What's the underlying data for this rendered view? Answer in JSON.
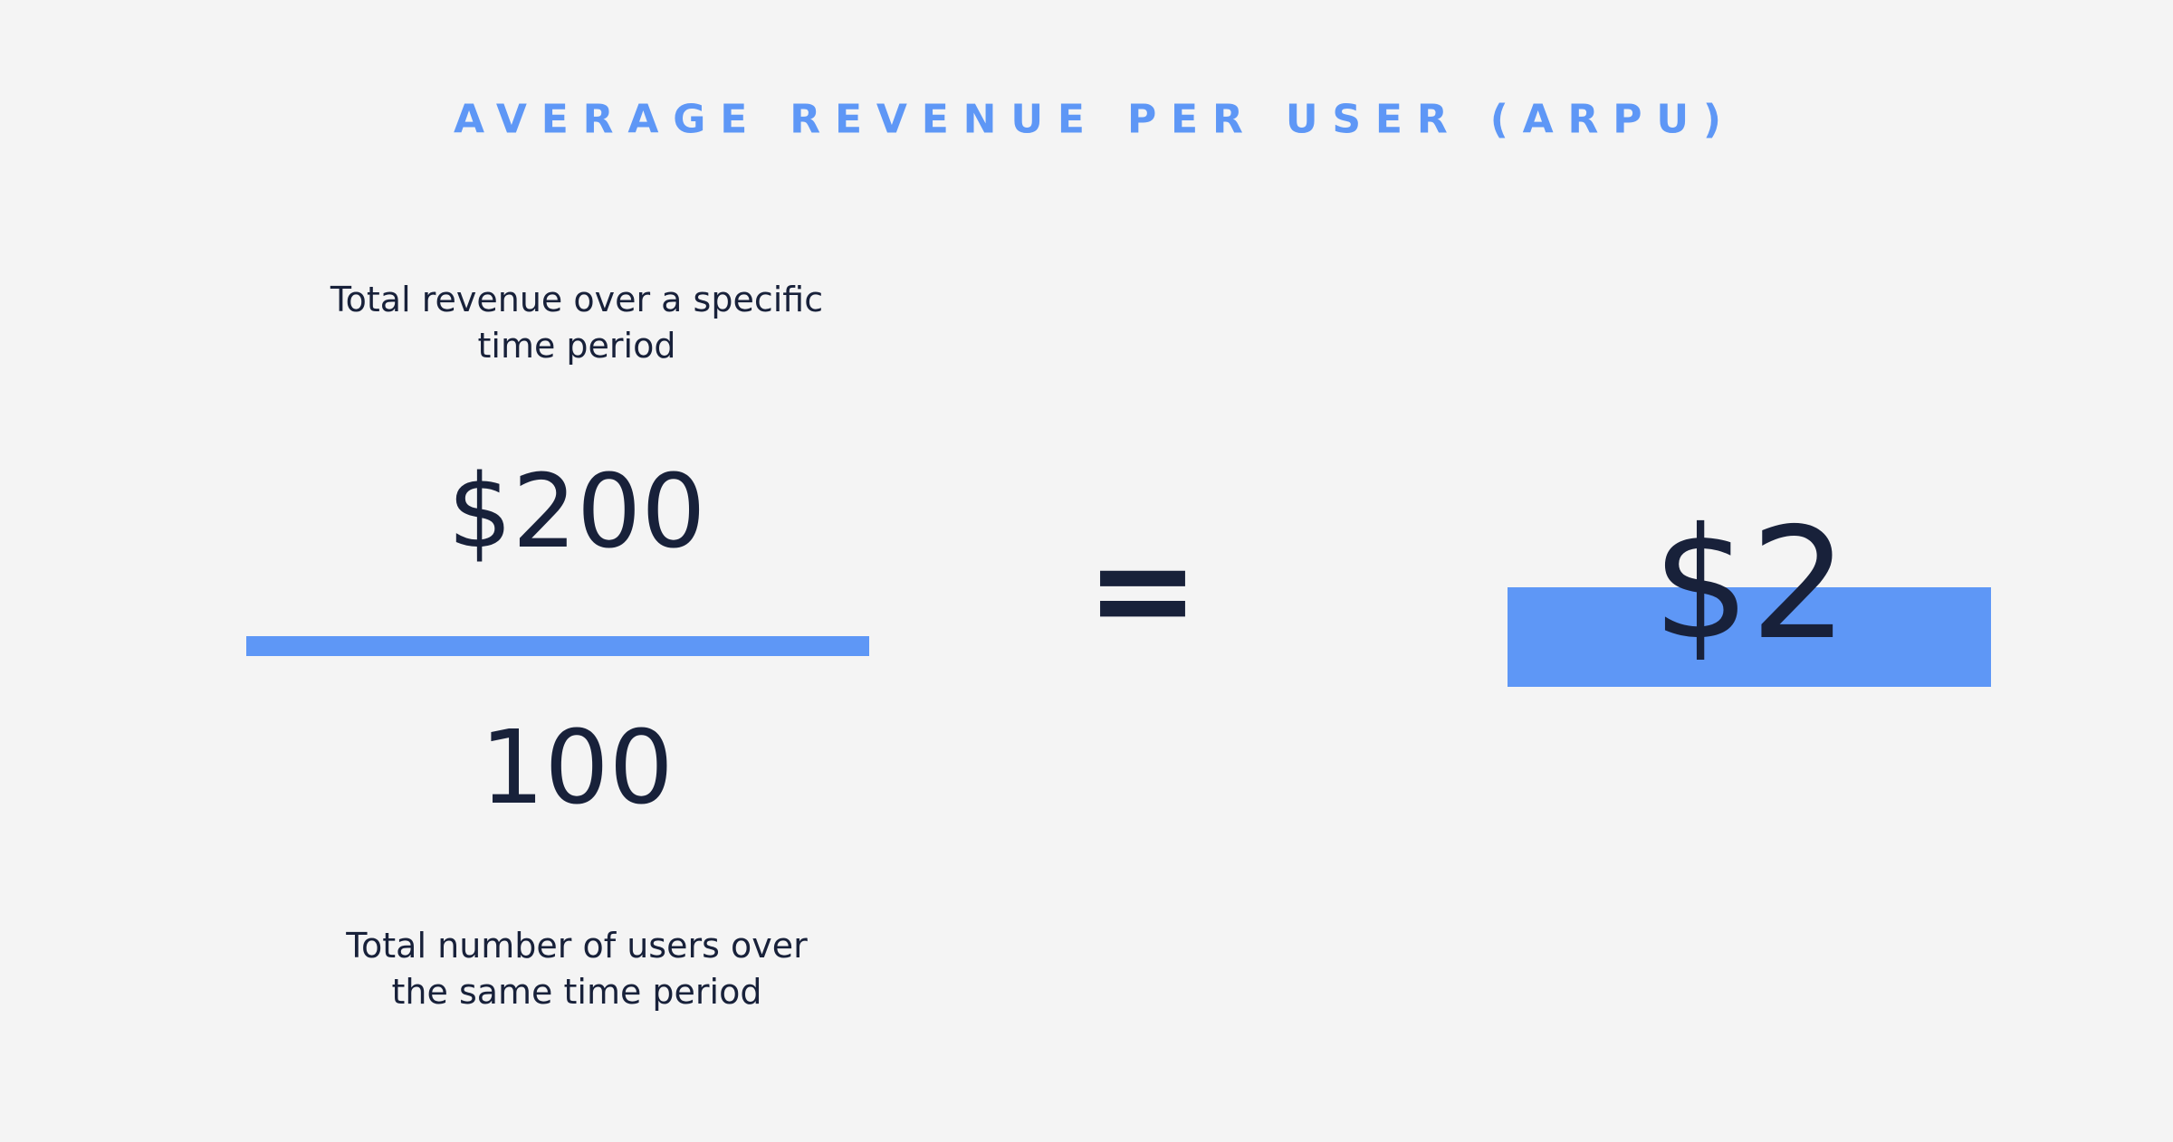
{
  "title": "AVERAGE REVENUE PER USER (ARPU)",
  "numerator": {
    "label": "Total revenue over a specific time period",
    "value": "$200"
  },
  "denominator": {
    "value": "100",
    "label": "Total number of users over the same time period"
  },
  "operator": "=",
  "result": "$2"
}
